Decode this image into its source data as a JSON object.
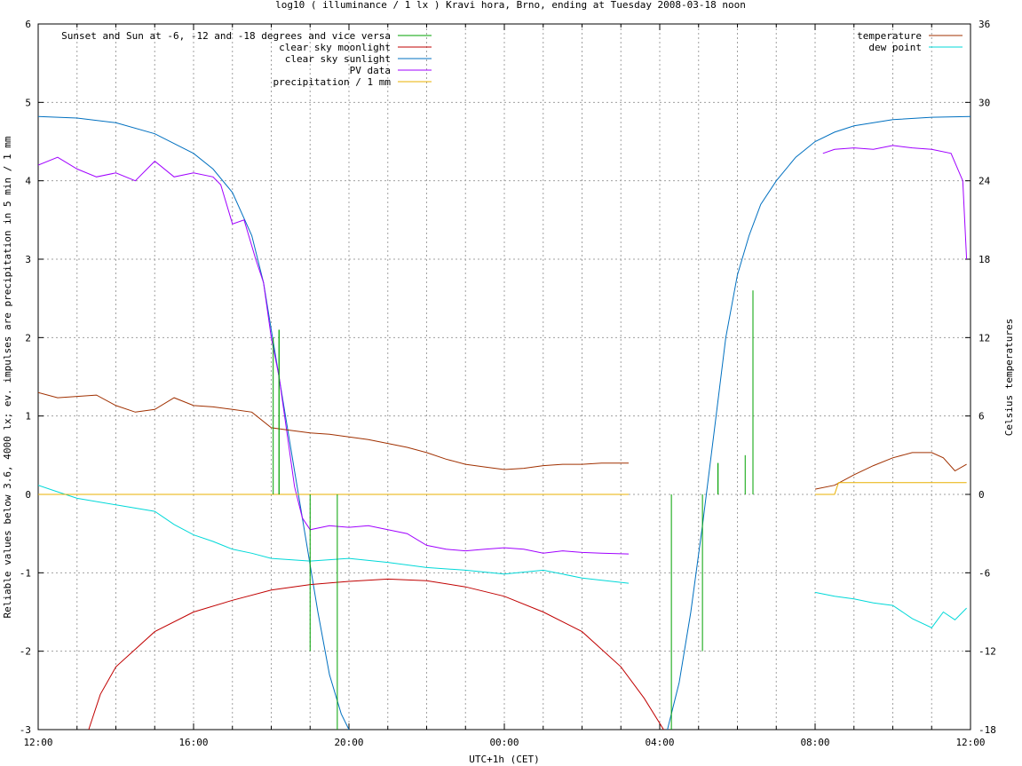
{
  "chart_data": {
    "type": "line",
    "title": "log10 ( illuminance / 1 lx ) Kravi hora, Brno, ending at Tuesday 2008-03-18 noon",
    "xlabel": "UTC+1h (CET)",
    "ylabel": "Reliable values below 3.6, 4000 lx; ev. impulses are precipitation in 5 min / 1 mm",
    "y2label": "Celsius temperatures",
    "x_ticks": [
      "12:00",
      "16:00",
      "20:00",
      "00:00",
      "04:00",
      "08:00",
      "12:00"
    ],
    "y_ticks": [
      "-3",
      "-2",
      "-1",
      "0",
      "1",
      "2",
      "3",
      "4",
      "5",
      "6"
    ],
    "y2_ticks": [
      "-18",
      "-12",
      "-6",
      "0",
      "6",
      "12",
      "18",
      "24",
      "30",
      "36"
    ],
    "x_range_hours": [
      0,
      24
    ],
    "ylim": [
      -3,
      6
    ],
    "y2lim": [
      -18,
      36
    ],
    "grid": true,
    "legend_left": {
      "placement": "top-left",
      "entries": [
        {
          "label": "Sunset and Sun at -6, -12 and -18 degrees and vice versa",
          "color": "#00a000"
        },
        {
          "label": "clear sky moonlight",
          "color": "#c00000"
        },
        {
          "label": "clear sky sunlight",
          "color": "#0070c0"
        },
        {
          "label": "PV data",
          "color": "#a000ff"
        },
        {
          "label": "precipitation / 1 mm",
          "color": "#e8b000"
        }
      ]
    },
    "legend_right": {
      "placement": "top-right",
      "entries": [
        {
          "label": "temperature",
          "color": "#a03000"
        },
        {
          "label": "dew point",
          "color": "#00d8d8"
        }
      ]
    },
    "series": [
      {
        "name": "clear sky sunlight",
        "axis": "y1",
        "color": "#0070c0",
        "points": [
          [
            0,
            4.82
          ],
          [
            1,
            4.8
          ],
          [
            2,
            4.74
          ],
          [
            3,
            4.6
          ],
          [
            4,
            4.35
          ],
          [
            4.5,
            4.15
          ],
          [
            5,
            3.85
          ],
          [
            5.5,
            3.3
          ],
          [
            5.8,
            2.7
          ],
          [
            6,
            2.1
          ],
          [
            6.3,
            1.2
          ],
          [
            6.6,
            0.3
          ],
          [
            6.9,
            -0.6
          ],
          [
            7.2,
            -1.5
          ],
          [
            7.5,
            -2.3
          ],
          [
            7.8,
            -2.8
          ],
          [
            8,
            -3.0
          ]
        ],
        "points_b": [
          [
            16.2,
            -3.0
          ],
          [
            16.5,
            -2.4
          ],
          [
            16.8,
            -1.5
          ],
          [
            17.1,
            -0.4
          ],
          [
            17.4,
            0.8
          ],
          [
            17.7,
            2.0
          ],
          [
            18,
            2.8
          ],
          [
            18.3,
            3.3
          ],
          [
            18.6,
            3.7
          ],
          [
            19,
            4.0
          ],
          [
            19.5,
            4.3
          ],
          [
            20,
            4.5
          ],
          [
            20.5,
            4.62
          ],
          [
            21,
            4.7
          ],
          [
            22,
            4.78
          ],
          [
            23,
            4.81
          ],
          [
            24,
            4.82
          ]
        ]
      },
      {
        "name": "clear sky moonlight",
        "axis": "y1",
        "color": "#c00000",
        "points": [
          [
            1.3,
            -3.0
          ],
          [
            1.6,
            -2.55
          ],
          [
            2,
            -2.2
          ],
          [
            3,
            -1.75
          ],
          [
            4,
            -1.5
          ],
          [
            5,
            -1.35
          ],
          [
            6,
            -1.22
          ],
          [
            7,
            -1.15
          ],
          [
            8,
            -1.11
          ],
          [
            9,
            -1.08
          ],
          [
            10,
            -1.1
          ],
          [
            11,
            -1.18
          ],
          [
            12,
            -1.3
          ],
          [
            13,
            -1.5
          ],
          [
            14,
            -1.75
          ],
          [
            15,
            -2.2
          ],
          [
            15.6,
            -2.6
          ],
          [
            16.1,
            -3.0
          ]
        ]
      },
      {
        "name": "PV data",
        "axis": "y1",
        "color": "#a000ff",
        "points": [
          [
            0,
            4.2
          ],
          [
            0.5,
            4.3
          ],
          [
            1,
            4.15
          ],
          [
            1.5,
            4.05
          ],
          [
            2,
            4.1
          ],
          [
            2.5,
            4.0
          ],
          [
            3,
            4.25
          ],
          [
            3.5,
            4.05
          ],
          [
            4,
            4.1
          ],
          [
            4.5,
            4.05
          ],
          [
            4.7,
            3.95
          ],
          [
            5,
            3.45
          ],
          [
            5.3,
            3.5
          ],
          [
            5.6,
            3.0
          ],
          [
            5.8,
            2.7
          ],
          [
            6,
            2.0
          ],
          [
            6.2,
            1.5
          ],
          [
            6.4,
            0.8
          ],
          [
            6.6,
            0.1
          ],
          [
            6.8,
            -0.3
          ],
          [
            7,
            -0.45
          ],
          [
            7.5,
            -0.4
          ],
          [
            8,
            -0.42
          ],
          [
            8.5,
            -0.4
          ],
          [
            9,
            -0.45
          ],
          [
            9.5,
            -0.5
          ],
          [
            10,
            -0.65
          ],
          [
            10.5,
            -0.7
          ],
          [
            11,
            -0.72
          ],
          [
            11.5,
            -0.7
          ],
          [
            12,
            -0.68
          ],
          [
            12.5,
            -0.7
          ],
          [
            13,
            -0.75
          ],
          [
            13.5,
            -0.72
          ],
          [
            14,
            -0.74
          ],
          [
            14.5,
            -0.75
          ],
          [
            15.2,
            -0.76
          ]
        ],
        "points_b": [
          [
            20.2,
            4.35
          ],
          [
            20.5,
            4.4
          ],
          [
            21,
            4.42
          ],
          [
            21.5,
            4.4
          ],
          [
            22,
            4.45
          ],
          [
            22.5,
            4.42
          ],
          [
            23,
            4.4
          ],
          [
            23.5,
            4.35
          ],
          [
            23.8,
            4.0
          ],
          [
            23.9,
            3.0
          ]
        ]
      },
      {
        "name": "temperature",
        "axis": "y2",
        "color": "#a03000",
        "points": [
          [
            0,
            7.8
          ],
          [
            0.5,
            7.4
          ],
          [
            1,
            7.5
          ],
          [
            1.5,
            7.6
          ],
          [
            2,
            6.8
          ],
          [
            2.5,
            6.3
          ],
          [
            3,
            6.5
          ],
          [
            3.5,
            7.4
          ],
          [
            4,
            6.8
          ],
          [
            4.5,
            6.7
          ],
          [
            5,
            6.5
          ],
          [
            5.5,
            6.3
          ],
          [
            6,
            5.1
          ],
          [
            6.5,
            4.9
          ],
          [
            7,
            4.7
          ],
          [
            7.5,
            4.6
          ],
          [
            8,
            4.4
          ],
          [
            8.5,
            4.2
          ],
          [
            9,
            3.9
          ],
          [
            9.5,
            3.6
          ],
          [
            10,
            3.2
          ],
          [
            10.5,
            2.7
          ],
          [
            11,
            2.3
          ],
          [
            11.5,
            2.1
          ],
          [
            12,
            1.9
          ],
          [
            12.5,
            2.0
          ],
          [
            13,
            2.2
          ],
          [
            13.5,
            2.3
          ],
          [
            14,
            2.3
          ],
          [
            14.5,
            2.4
          ],
          [
            15.2,
            2.4
          ]
        ],
        "points_b": [
          [
            20,
            0.4
          ],
          [
            20.5,
            0.7
          ],
          [
            21,
            1.5
          ],
          [
            21.5,
            2.2
          ],
          [
            22,
            2.8
          ],
          [
            22.5,
            3.2
          ],
          [
            23,
            3.2
          ],
          [
            23.3,
            2.8
          ],
          [
            23.6,
            1.8
          ],
          [
            23.9,
            2.3
          ]
        ]
      },
      {
        "name": "dew point",
        "axis": "y2",
        "color": "#00d8d8",
        "points": [
          [
            0,
            0.7
          ],
          [
            0.5,
            0.2
          ],
          [
            1,
            -0.3
          ],
          [
            2,
            -0.8
          ],
          [
            3,
            -1.3
          ],
          [
            3.5,
            -2.3
          ],
          [
            4,
            -3.1
          ],
          [
            4.5,
            -3.6
          ],
          [
            5,
            -4.2
          ],
          [
            5.5,
            -4.5
          ],
          [
            6,
            -4.9
          ],
          [
            7,
            -5.1
          ],
          [
            8,
            -4.9
          ],
          [
            9,
            -5.2
          ],
          [
            10,
            -5.6
          ],
          [
            11,
            -5.8
          ],
          [
            12,
            -6.1
          ],
          [
            13,
            -5.8
          ],
          [
            14,
            -6.4
          ],
          [
            15.2,
            -6.8
          ]
        ],
        "points_b": [
          [
            20,
            -7.5
          ],
          [
            20.5,
            -7.8
          ],
          [
            21,
            -8.0
          ],
          [
            21.5,
            -8.3
          ],
          [
            22,
            -8.5
          ],
          [
            22.5,
            -9.5
          ],
          [
            23,
            -10.2
          ],
          [
            23.3,
            -9.0
          ],
          [
            23.6,
            -9.6
          ],
          [
            23.9,
            -8.7
          ]
        ]
      },
      {
        "name": "precipitation / 1 mm",
        "axis": "y1",
        "color": "#e8b000",
        "points": [
          [
            0,
            0
          ],
          [
            15.2,
            0
          ]
        ],
        "points_b": [
          [
            20,
            0.0
          ],
          [
            20.5,
            0.0
          ],
          [
            20.6,
            0.15
          ],
          [
            23.9,
            0.15
          ]
        ]
      }
    ],
    "sun_markers": {
      "name": "Sunset and Sun at -6, -12 and -18 degrees and vice versa",
      "color": "#00a000",
      "impulses": [
        [
          6.05,
          0.0
        ],
        [
          6.2,
          2.1
        ],
        [
          7.0,
          0.0
        ],
        [
          7.3,
          0.0
        ],
        [
          7.7,
          0.0
        ],
        [
          8.0,
          0.0
        ],
        [
          8.3,
          0.0
        ],
        [
          8.9,
          0.0
        ],
        [
          15.0,
          0.0
        ],
        [
          15.7,
          0.0
        ],
        [
          16.3,
          0.0
        ],
        [
          17.1,
          0.0
        ],
        [
          17.5,
          0.4
        ],
        [
          18.2,
          0.0
        ],
        [
          18.4,
          2.6
        ]
      ]
    }
  }
}
